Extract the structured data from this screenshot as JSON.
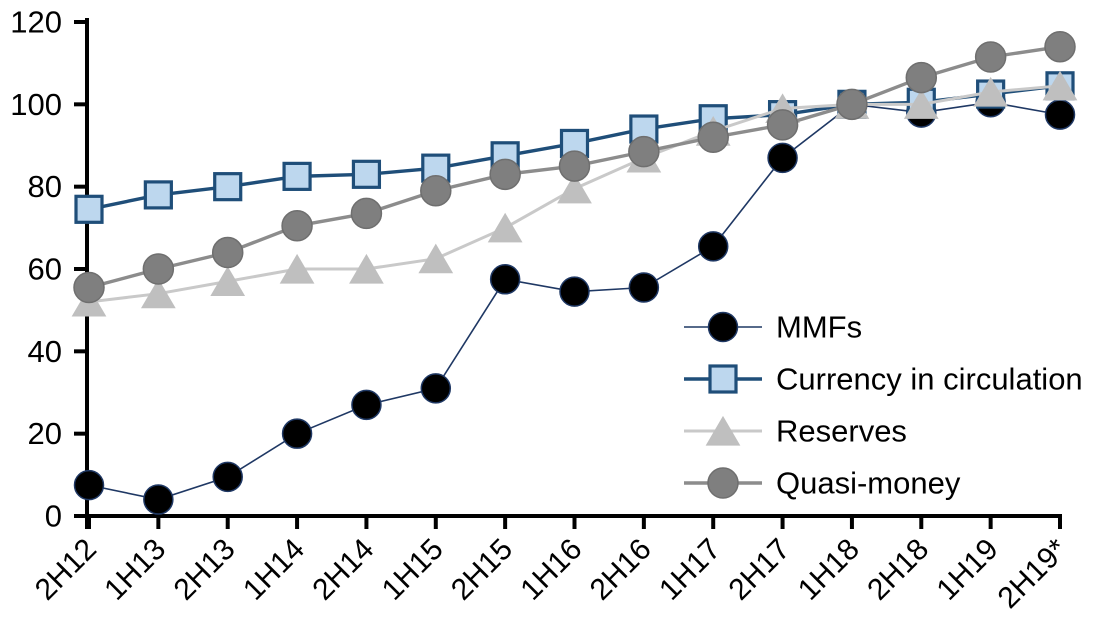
{
  "chart_data": {
    "type": "line",
    "title": "",
    "xlabel": "",
    "ylabel": "",
    "grid": false,
    "background": "#FFFFFF",
    "axis_color": "#000000",
    "text_color": "#000000",
    "ylim": [
      0,
      120
    ],
    "ytick_step": 20,
    "y_ticks": [
      0,
      20,
      40,
      60,
      80,
      100,
      120
    ],
    "legend_position": "center-right",
    "categories": [
      "2H12",
      "1H13",
      "2H13",
      "1H14",
      "2H14",
      "1H15",
      "2H15",
      "1H16",
      "2H16",
      "1H17",
      "2H17",
      "1H18",
      "2H18",
      "1H19",
      "2H19*"
    ],
    "series": [
      {
        "name": "MMFs",
        "marker": "circle",
        "values": [
          7.5,
          4,
          9.5,
          20,
          27,
          31,
          57.5,
          54.5,
          55.5,
          65.5,
          87,
          100,
          98,
          100.5,
          97.5
        ],
        "line_color": "#1F3864",
        "line_width": 1.6,
        "marker_fill": "#000000",
        "marker_stroke": "#1F3864",
        "marker_size": 29
      },
      {
        "name": "Currency in circulation",
        "marker": "square",
        "values": [
          74.5,
          78,
          80,
          82.5,
          83,
          84.5,
          87.5,
          90.5,
          94,
          96.5,
          97.5,
          100,
          100.5,
          102.5,
          104.5
        ],
        "line_color": "#1F4E79",
        "line_width": 3.4,
        "marker_fill": "#BDD7EE",
        "marker_stroke": "#1F4E79",
        "marker_size": 26
      },
      {
        "name": "Reserves",
        "marker": "triangle",
        "values": [
          52,
          54,
          57,
          60,
          60,
          62.5,
          70,
          79.5,
          87,
          93.5,
          99,
          100,
          100,
          103,
          104.5
        ],
        "line_color": "#C9C9C9",
        "line_width": 3,
        "marker_fill": "#BFBFBF",
        "marker_stroke": "#BFBFBF",
        "marker_size": 30
      },
      {
        "name": "Quasi-money",
        "marker": "circle",
        "values": [
          55.5,
          60,
          64,
          70.5,
          73.5,
          79,
          83,
          85,
          88.5,
          92,
          95,
          100,
          106.5,
          111.5,
          114
        ],
        "line_color": "#8C8C8C",
        "line_width": 3.4,
        "marker_fill": "#7F7F7F",
        "marker_stroke": "#6F6F6F",
        "marker_size": 30
      }
    ]
  }
}
